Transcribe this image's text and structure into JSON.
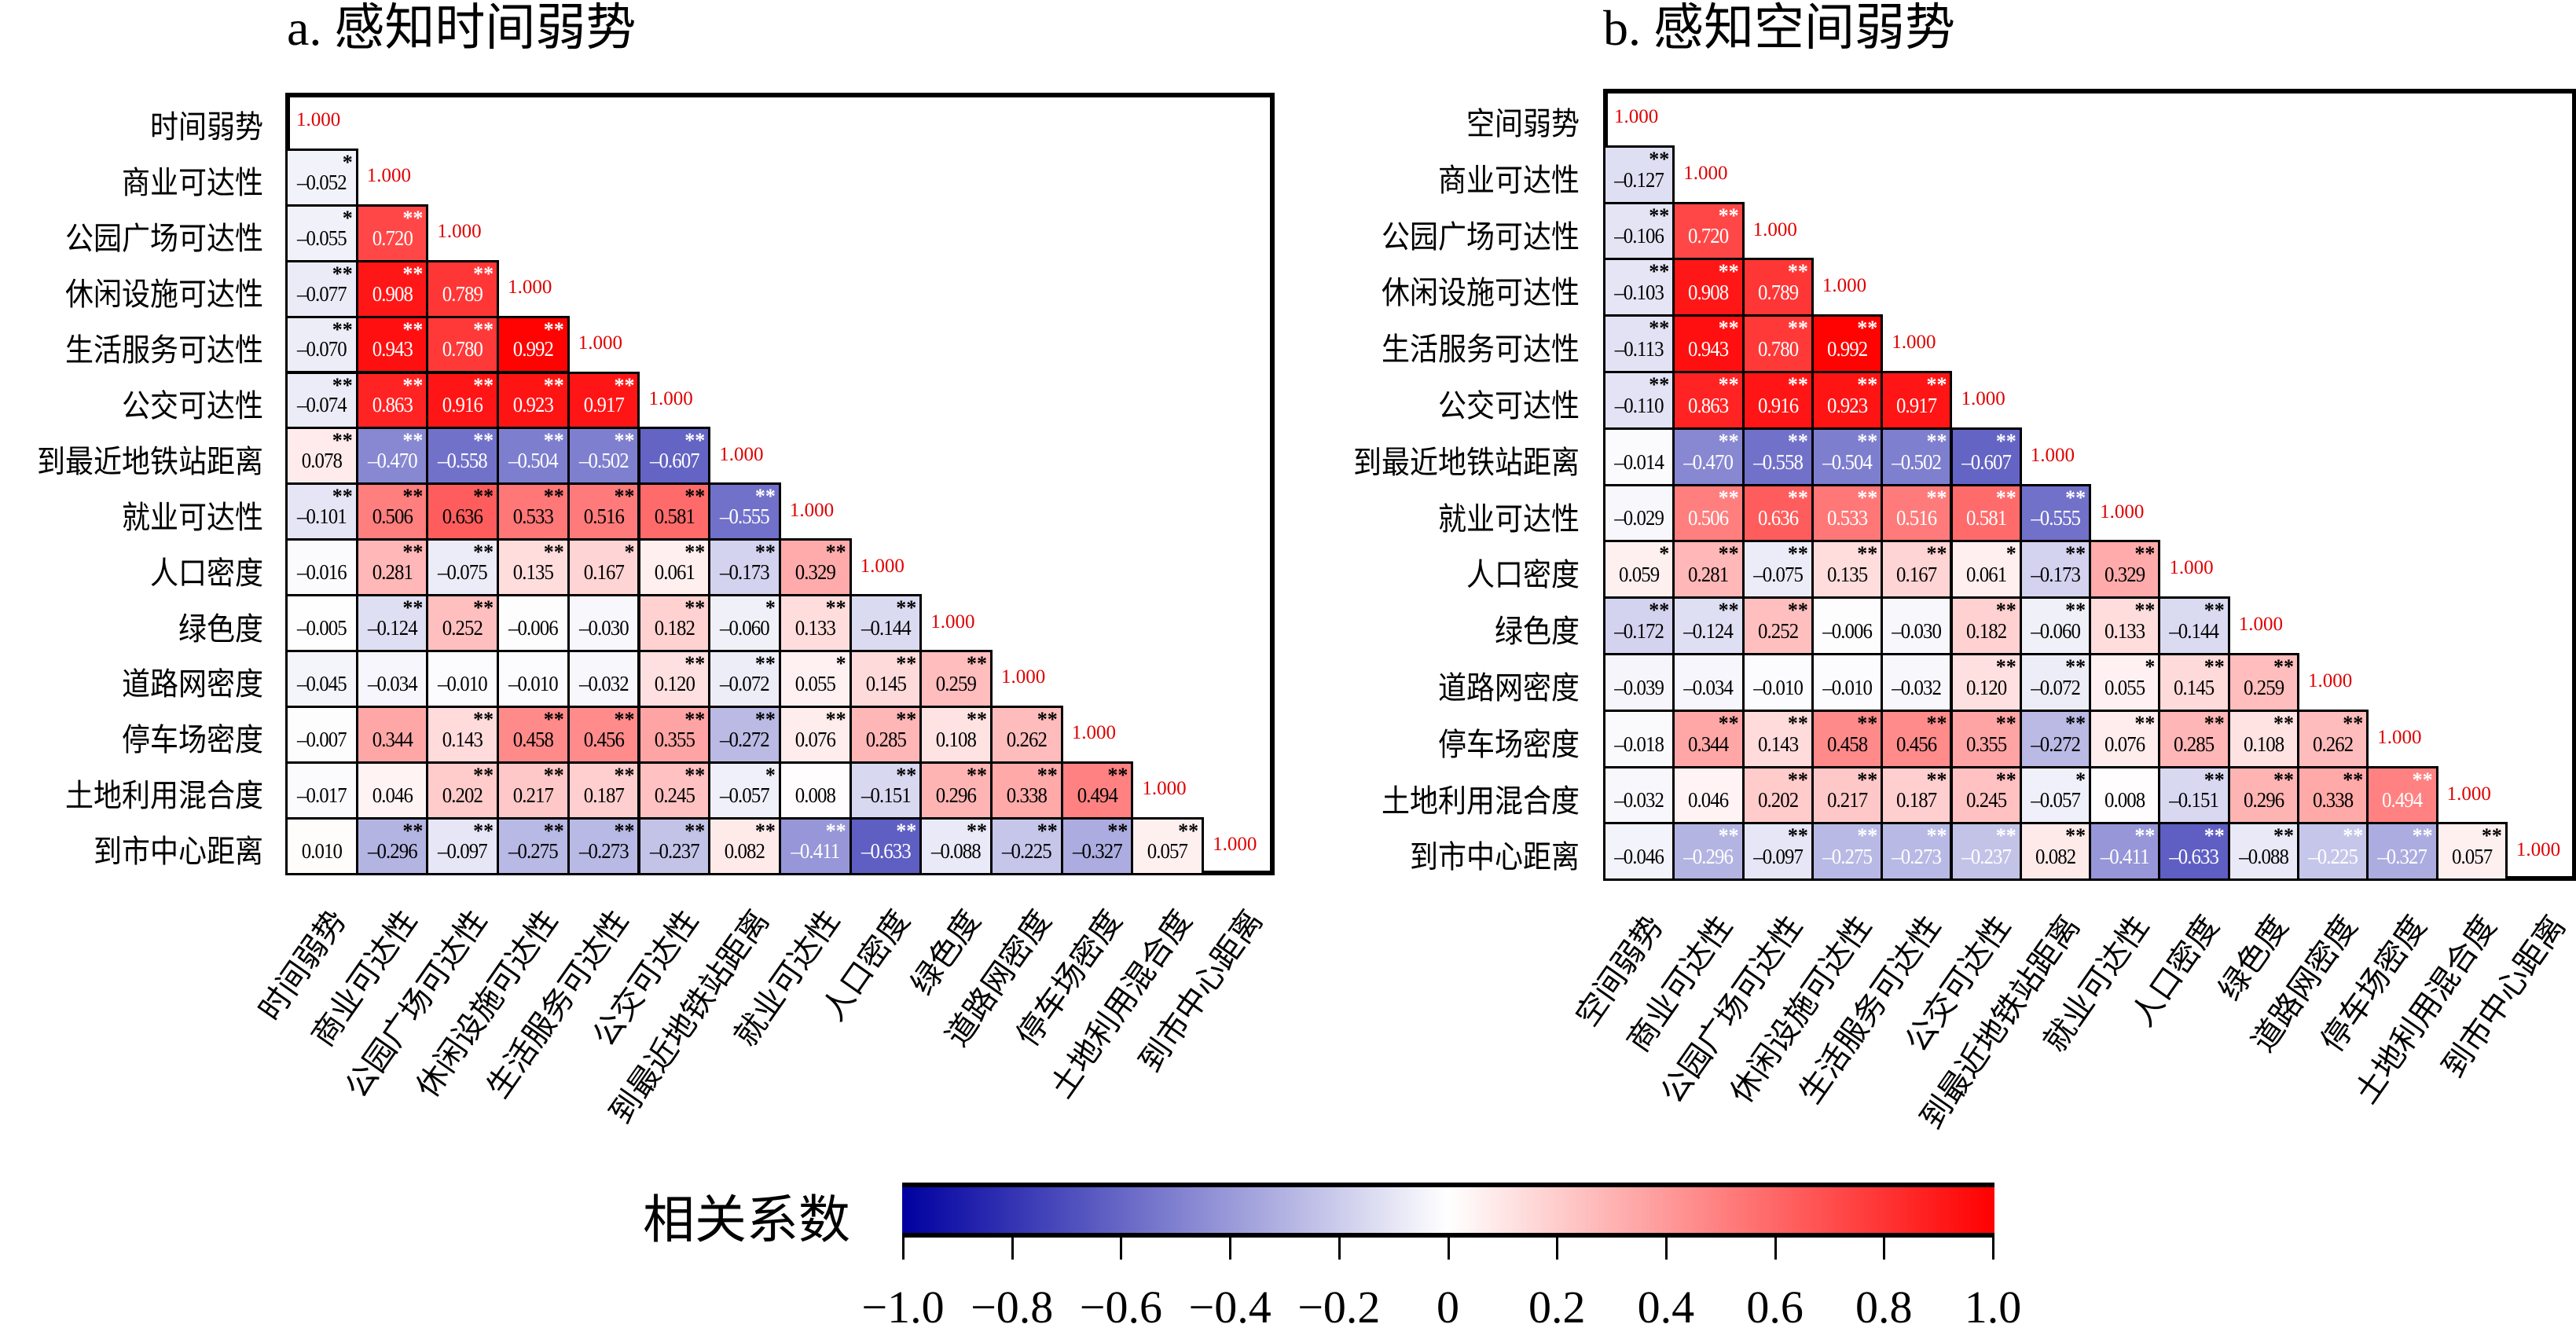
{
  "chart_data": [
    {
      "type": "heatmap",
      "title": "a. 感知时间弱势",
      "variables": [
        "时间弱势",
        "商业可达性",
        "公园广场可达性",
        "休闲设施可达性",
        "生活服务可达性",
        "公交可达性",
        "到最近地铁站距离",
        "就业可达性",
        "人口密度",
        "绿色度",
        "道路网密度",
        "停车场密度",
        "土地利用混合度",
        "到市中心距离"
      ],
      "diagonal_label": "1.000",
      "lower_triangle": [
        [],
        [
          [
            "-0.052",
            "*",
            0
          ]
        ],
        [
          [
            "-0.055",
            "*",
            0
          ],
          [
            "0.720",
            "**",
            1
          ]
        ],
        [
          [
            "-0.077",
            "**",
            0
          ],
          [
            "0.908",
            "**",
            1
          ],
          [
            "0.789",
            "**",
            1
          ]
        ],
        [
          [
            "-0.070",
            "**",
            0
          ],
          [
            "0.943",
            "**",
            1
          ],
          [
            "0.780",
            "**",
            1
          ],
          [
            "0.992",
            "**",
            1
          ]
        ],
        [
          [
            "-0.074",
            "**",
            0
          ],
          [
            "0.863",
            "**",
            1
          ],
          [
            "0.916",
            "**",
            1
          ],
          [
            "0.923",
            "**",
            1
          ],
          [
            "0.917",
            "**",
            1
          ]
        ],
        [
          [
            "0.078",
            "**",
            0
          ],
          [
            "-0.470",
            "**",
            1
          ],
          [
            "-0.558",
            "**",
            1
          ],
          [
            "-0.504",
            "**",
            1
          ],
          [
            "-0.502",
            "**",
            1
          ],
          [
            "-0.607",
            "**",
            1
          ]
        ],
        [
          [
            "-0.101",
            "**",
            0
          ],
          [
            "0.506",
            "**",
            0
          ],
          [
            "0.636",
            "**",
            0
          ],
          [
            "0.533",
            "**",
            0
          ],
          [
            "0.516",
            "**",
            0
          ],
          [
            "0.581",
            "**",
            0
          ],
          [
            "-0.555",
            "**",
            1
          ]
        ],
        [
          [
            "-0.016",
            "",
            0
          ],
          [
            "0.281",
            "**",
            0
          ],
          [
            "-0.075",
            "**",
            0
          ],
          [
            "0.135",
            "**",
            0
          ],
          [
            "0.167",
            "*",
            0
          ],
          [
            "0.061",
            "**",
            0
          ],
          [
            "-0.173",
            "**",
            0
          ],
          [
            "0.329",
            "**",
            0
          ]
        ],
        [
          [
            "-0.005",
            "",
            0
          ],
          [
            "-0.124",
            "**",
            0
          ],
          [
            "0.252",
            "**",
            0
          ],
          [
            "-0.006",
            "",
            0
          ],
          [
            "-0.030",
            "",
            0
          ],
          [
            "0.182",
            "**",
            0
          ],
          [
            "-0.060",
            "*",
            0
          ],
          [
            "0.133",
            "**",
            0
          ],
          [
            "-0.144",
            "**",
            0
          ]
        ],
        [
          [
            "-0.045",
            "",
            0
          ],
          [
            "-0.034",
            "",
            0
          ],
          [
            "-0.010",
            "",
            0
          ],
          [
            "-0.010",
            "",
            0
          ],
          [
            "-0.032",
            "",
            0
          ],
          [
            "0.120",
            "**",
            0
          ],
          [
            "-0.072",
            "**",
            0
          ],
          [
            "0.055",
            "*",
            0
          ],
          [
            "0.145",
            "**",
            0
          ],
          [
            "0.259",
            "**",
            0
          ]
        ],
        [
          [
            "-0.007",
            "",
            0
          ],
          [
            "0.344",
            "",
            0
          ],
          [
            "0.143",
            "**",
            0
          ],
          [
            "0.458",
            "**",
            0
          ],
          [
            "0.456",
            "**",
            0
          ],
          [
            "0.355",
            "**",
            0
          ],
          [
            "-0.272",
            "**",
            0
          ],
          [
            "0.076",
            "**",
            0
          ],
          [
            "0.285",
            "**",
            0
          ],
          [
            "0.108",
            "**",
            0
          ],
          [
            "0.262",
            "**",
            0
          ]
        ],
        [
          [
            "-0.017",
            "",
            0
          ],
          [
            "0.046",
            "",
            0
          ],
          [
            "0.202",
            "**",
            0
          ],
          [
            "0.217",
            "**",
            0
          ],
          [
            "0.187",
            "**",
            0
          ],
          [
            "0.245",
            "**",
            0
          ],
          [
            "-0.057",
            "*",
            0
          ],
          [
            "0.008",
            "",
            0
          ],
          [
            "-0.151",
            "**",
            0
          ],
          [
            "0.296",
            "**",
            0
          ],
          [
            "0.338",
            "**",
            0
          ],
          [
            "0.494",
            "**",
            0
          ]
        ],
        [
          [
            "0.010",
            "",
            0
          ],
          [
            "-0.296",
            "**",
            0
          ],
          [
            "-0.097",
            "**",
            0
          ],
          [
            "-0.275",
            "**",
            0
          ],
          [
            "-0.273",
            "**",
            0
          ],
          [
            "-0.237",
            "**",
            0
          ],
          [
            "0.082",
            "**",
            0
          ],
          [
            "-0.411",
            "**",
            1
          ],
          [
            "-0.633",
            "**",
            1
          ],
          [
            "-0.088",
            "**",
            0
          ],
          [
            "-0.225",
            "**",
            0
          ],
          [
            "-0.327",
            "**",
            0
          ],
          [
            "0.057",
            "**",
            0
          ]
        ]
      ]
    },
    {
      "type": "heatmap",
      "title": "b. 感知空间弱势",
      "variables": [
        "空间弱势",
        "商业可达性",
        "公园广场可达性",
        "休闲设施可达性",
        "生活服务可达性",
        "公交可达性",
        "到最近地铁站距离",
        "就业可达性",
        "人口密度",
        "绿色度",
        "道路网密度",
        "停车场密度",
        "土地利用混合度",
        "到市中心距离"
      ],
      "diagonal_label": "1.000",
      "lower_triangle": [
        [],
        [
          [
            "-0.127",
            "**",
            0
          ]
        ],
        [
          [
            "-0.106",
            "**",
            0
          ],
          [
            "0.720",
            "**",
            1
          ]
        ],
        [
          [
            "-0.103",
            "**",
            0
          ],
          [
            "0.908",
            "**",
            1
          ],
          [
            "0.789",
            "**",
            1
          ]
        ],
        [
          [
            "-0.113",
            "**",
            0
          ],
          [
            "0.943",
            "**",
            1
          ],
          [
            "0.780",
            "**",
            1
          ],
          [
            "0.992",
            "**",
            1
          ]
        ],
        [
          [
            "-0.110",
            "**",
            0
          ],
          [
            "0.863",
            "**",
            1
          ],
          [
            "0.916",
            "**",
            1
          ],
          [
            "0.923",
            "**",
            1
          ],
          [
            "0.917",
            "**",
            1
          ]
        ],
        [
          [
            "-0.014",
            "",
            0
          ],
          [
            "-0.470",
            "**",
            1
          ],
          [
            "-0.558",
            "**",
            1
          ],
          [
            "-0.504",
            "**",
            1
          ],
          [
            "-0.502",
            "**",
            1
          ],
          [
            "-0.607",
            "**",
            1
          ]
        ],
        [
          [
            "-0.029",
            "",
            0
          ],
          [
            "0.506",
            "**",
            1
          ],
          [
            "0.636",
            "**",
            1
          ],
          [
            "0.533",
            "**",
            1
          ],
          [
            "0.516",
            "**",
            1
          ],
          [
            "0.581",
            "**",
            1
          ],
          [
            "-0.555",
            "**",
            1
          ]
        ],
        [
          [
            "0.059",
            "*",
            0
          ],
          [
            "0.281",
            "**",
            0
          ],
          [
            "-0.075",
            "**",
            0
          ],
          [
            "0.135",
            "**",
            0
          ],
          [
            "0.167",
            "**",
            0
          ],
          [
            "0.061",
            "*",
            0
          ],
          [
            "-0.173",
            "**",
            0
          ],
          [
            "0.329",
            "**",
            0
          ]
        ],
        [
          [
            "-0.172",
            "**",
            0
          ],
          [
            "-0.124",
            "**",
            0
          ],
          [
            "0.252",
            "**",
            0
          ],
          [
            "-0.006",
            "",
            0
          ],
          [
            "-0.030",
            "",
            0
          ],
          [
            "0.182",
            "**",
            0
          ],
          [
            "-0.060",
            "**",
            0
          ],
          [
            "0.133",
            "**",
            0
          ],
          [
            "-0.144",
            "**",
            0
          ]
        ],
        [
          [
            "-0.039",
            "",
            0
          ],
          [
            "-0.034",
            "",
            0
          ],
          [
            "-0.010",
            "",
            0
          ],
          [
            "-0.010",
            "",
            0
          ],
          [
            "-0.032",
            "",
            0
          ],
          [
            "0.120",
            "**",
            0
          ],
          [
            "-0.072",
            "**",
            0
          ],
          [
            "0.055",
            "*",
            0
          ],
          [
            "0.145",
            "**",
            0
          ],
          [
            "0.259",
            "**",
            0
          ]
        ],
        [
          [
            "-0.018",
            "",
            0
          ],
          [
            "0.344",
            "**",
            0
          ],
          [
            "0.143",
            "**",
            0
          ],
          [
            "0.458",
            "**",
            0
          ],
          [
            "0.456",
            "**",
            0
          ],
          [
            "0.355",
            "**",
            0
          ],
          [
            "-0.272",
            "**",
            0
          ],
          [
            "0.076",
            "**",
            0
          ],
          [
            "0.285",
            "**",
            0
          ],
          [
            "0.108",
            "**",
            0
          ],
          [
            "0.262",
            "**",
            0
          ]
        ],
        [
          [
            "-0.032",
            "",
            0
          ],
          [
            "0.046",
            "",
            0
          ],
          [
            "0.202",
            "**",
            0
          ],
          [
            "0.217",
            "**",
            0
          ],
          [
            "0.187",
            "**",
            0
          ],
          [
            "0.245",
            "**",
            0
          ],
          [
            "-0.057",
            "*",
            0
          ],
          [
            "0.008",
            "",
            0
          ],
          [
            "-0.151",
            "**",
            0
          ],
          [
            "0.296",
            "**",
            0
          ],
          [
            "0.338",
            "**",
            0
          ],
          [
            "0.494",
            "**",
            1
          ]
        ],
        [
          [
            "-0.046",
            "",
            0
          ],
          [
            "-0.296",
            "**",
            1
          ],
          [
            "-0.097",
            "**",
            0
          ],
          [
            "-0.275",
            "**",
            1
          ],
          [
            "-0.273",
            "**",
            1
          ],
          [
            "-0.237",
            "**",
            1
          ],
          [
            "0.082",
            "**",
            0
          ],
          [
            "-0.411",
            "**",
            1
          ],
          [
            "-0.633",
            "**",
            1
          ],
          [
            "-0.088",
            "**",
            0
          ],
          [
            "-0.225",
            "**",
            1
          ],
          [
            "-0.327",
            "**",
            1
          ],
          [
            "0.057",
            "**",
            0
          ]
        ]
      ]
    }
  ],
  "colorbar": {
    "title": "相关系数",
    "range": [
      -1.0,
      1.0
    ],
    "low_color": "#0000a0",
    "mid_color": "#ffffff",
    "high_color": "#ff0000",
    "tick_labels": [
      "−1.0",
      "−0.8",
      "−0.6",
      "−0.4",
      "−0.2",
      "0",
      "0.2",
      "0.4",
      "0.6",
      "0.8",
      "1.0"
    ]
  },
  "colors": {
    "diagonal_text": "#e00000",
    "light_text": "#ffffff",
    "dark_text": "#000000"
  }
}
